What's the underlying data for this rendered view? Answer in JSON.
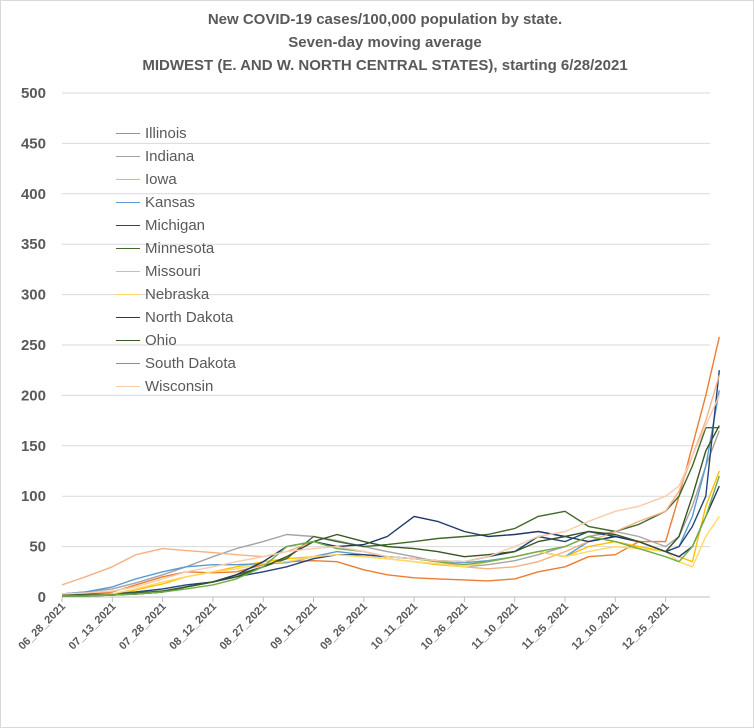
{
  "chart_data": {
    "type": "line",
    "title": "New COVID-19 cases/100,000 population by state.",
    "subtitle": "Seven-day moving average",
    "subtitle2": "MIDWEST (E. AND W. NORTH CENTRAL STATES), starting 6/28/2021",
    "xlabel": "",
    "ylabel": "",
    "ylim": [
      0,
      500
    ],
    "yticks": [
      0,
      50,
      100,
      150,
      200,
      250,
      300,
      350,
      400,
      450,
      500
    ],
    "xticks": [
      "06_28_2021",
      "07_13_2021",
      "07_28_2021",
      "08_12_2021",
      "08_27_2021",
      "09_11_2021",
      "09_26_2021",
      "10_11_2021",
      "10_26_2021",
      "11_10_2021",
      "11_25_2021",
      "12_10_2021",
      "12_25_2021"
    ],
    "x": [
      "06_28_2021",
      "07_05_2021",
      "07_13_2021",
      "07_20_2021",
      "07_28_2021",
      "08_04_2021",
      "08_12_2021",
      "08_19_2021",
      "08_27_2021",
      "09_03_2021",
      "09_11_2021",
      "09_18_2021",
      "09_26_2021",
      "10_03_2021",
      "10_11_2021",
      "10_18_2021",
      "10_26_2021",
      "11_02_2021",
      "11_10_2021",
      "11_17_2021",
      "11_25_2021",
      "12_02_2021",
      "12_10_2021",
      "12_17_2021",
      "12_25_2021",
      "12_29_2021",
      "01_02_2022",
      "01_06_2022",
      "01_10_2022"
    ],
    "grid": true,
    "legend_position": "upper-left inside plot",
    "series": [
      {
        "name": "Illinois",
        "color": "#ed7d31",
        "values": [
          2,
          3,
          5,
          12,
          20,
          25,
          24,
          25,
          32,
          35,
          36,
          35,
          27,
          22,
          19,
          18,
          17,
          16,
          18,
          25,
          30,
          40,
          42,
          55,
          55,
          100,
          150,
          200,
          258
        ]
      },
      {
        "name": "Indiana",
        "color": "#a5a5a5",
        "values": [
          3,
          5,
          8,
          14,
          22,
          30,
          40,
          48,
          55,
          62,
          60,
          56,
          50,
          45,
          40,
          35,
          30,
          32,
          36,
          42,
          50,
          60,
          65,
          60,
          50,
          60,
          90,
          130,
          165
        ]
      },
      {
        "name": "Iowa",
        "color": "#ffc000",
        "values": [
          1,
          2,
          3,
          7,
          13,
          20,
          25,
          30,
          35,
          38,
          40,
          42,
          40,
          38,
          35,
          32,
          30,
          35,
          40,
          45,
          40,
          50,
          55,
          50,
          45,
          40,
          35,
          90,
          125
        ]
      },
      {
        "name": "Kansas",
        "color": "#5b9bd5",
        "values": [
          3,
          5,
          10,
          18,
          25,
          30,
          32,
          32,
          33,
          34,
          40,
          45,
          42,
          40,
          38,
          36,
          34,
          36,
          40,
          45,
          40,
          55,
          60,
          55,
          45,
          50,
          80,
          130,
          205
        ]
      },
      {
        "name": "Michigan",
        "color": "#264478",
        "values": [
          2,
          3,
          3,
          5,
          8,
          12,
          15,
          20,
          25,
          30,
          38,
          42,
          42,
          40,
          38,
          36,
          35,
          40,
          45,
          60,
          55,
          65,
          60,
          55,
          45,
          50,
          70,
          100,
          225
        ]
      },
      {
        "name": "Minnesota",
        "color": "#43682b",
        "values": [
          2,
          3,
          3,
          4,
          6,
          10,
          15,
          22,
          30,
          38,
          60,
          55,
          50,
          52,
          55,
          58,
          60,
          62,
          68,
          80,
          85,
          70,
          65,
          72,
          85,
          100,
          130,
          168,
          168
        ]
      },
      {
        "name": "Missouri",
        "color": "#f4b183",
        "values": [
          12,
          20,
          30,
          42,
          48,
          46,
          44,
          42,
          40,
          45,
          55,
          50,
          45,
          40,
          38,
          35,
          30,
          28,
          30,
          35,
          45,
          55,
          65,
          75,
          85,
          105,
          140,
          175,
          220
        ]
      },
      {
        "name": "Nebraska",
        "color": "#ffd966",
        "values": [
          1,
          2,
          3,
          8,
          15,
          20,
          25,
          28,
          33,
          35,
          40,
          42,
          40,
          38,
          35,
          33,
          30,
          35,
          40,
          45,
          40,
          45,
          50,
          48,
          45,
          35,
          30,
          60,
          80
        ]
      },
      {
        "name": "North Dakota",
        "color": "#1f3864",
        "values": [
          1,
          1,
          2,
          3,
          5,
          10,
          15,
          22,
          35,
          50,
          55,
          50,
          52,
          60,
          80,
          75,
          65,
          60,
          62,
          65,
          60,
          55,
          60,
          55,
          45,
          40,
          50,
          80,
          110
        ]
      },
      {
        "name": "Ohio",
        "color": "#375623",
        "values": [
          2,
          2,
          2,
          3,
          5,
          10,
          15,
          20,
          30,
          40,
          55,
          62,
          55,
          50,
          48,
          45,
          40,
          42,
          45,
          55,
          60,
          65,
          62,
          55,
          45,
          60,
          100,
          145,
          170
        ]
      },
      {
        "name": "South Dakota",
        "color": "#70ad47",
        "values": [
          1,
          1,
          2,
          3,
          5,
          8,
          12,
          18,
          30,
          50,
          55,
          48,
          45,
          40,
          38,
          35,
          32,
          35,
          40,
          45,
          50,
          60,
          55,
          48,
          40,
          35,
          50,
          80,
          120
        ]
      },
      {
        "name": "Wisconsin",
        "color": "#f8cbad",
        "values": [
          3,
          4,
          6,
          10,
          18,
          25,
          30,
          35,
          40,
          45,
          48,
          50,
          45,
          40,
          38,
          36,
          35,
          40,
          50,
          60,
          65,
          75,
          85,
          90,
          100,
          110,
          140,
          170,
          200
        ]
      }
    ]
  }
}
